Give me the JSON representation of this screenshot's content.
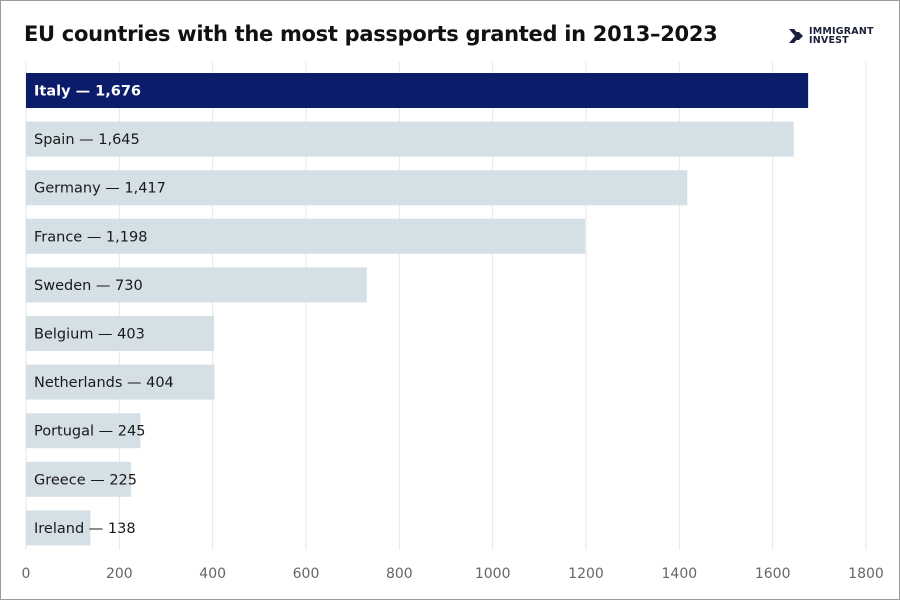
{
  "chart_data": {
    "type": "bar",
    "orientation": "horizontal",
    "title": "EU countries with the most passports granted in 2013–2023",
    "categories": [
      "Italy",
      "Spain",
      "Germany",
      "France",
      "Sweden",
      "Belgium",
      "Netherlands",
      "Portugal",
      "Greece",
      "Ireland"
    ],
    "values": [
      1676,
      1645,
      1417,
      1198,
      730,
      403,
      404,
      245,
      225,
      138
    ],
    "bar_labels": [
      "Italy — 1,676",
      "Spain — 1,645",
      "Germany — 1,417",
      "France — 1,198",
      "Sweden — 730",
      "Belgium — 403",
      "Netherlands — 404",
      "Portugal — 245",
      "Greece — 225",
      "Ireland — 138"
    ],
    "xlim": [
      0,
      1800
    ],
    "xticks": [
      "0",
      "200",
      "400",
      "600",
      "800",
      "1000",
      "1200",
      "1400",
      "1600",
      "1800"
    ],
    "xlabel": "",
    "ylabel": "",
    "grid": "vertical",
    "colors": {
      "highlight": "#0b1c6b",
      "default": "#d5dfe6",
      "grid": "#e6e6e6"
    }
  },
  "logo": {
    "line1": "IMMIGRANT",
    "line2": "INVEST",
    "color": "#1a1f3a"
  }
}
